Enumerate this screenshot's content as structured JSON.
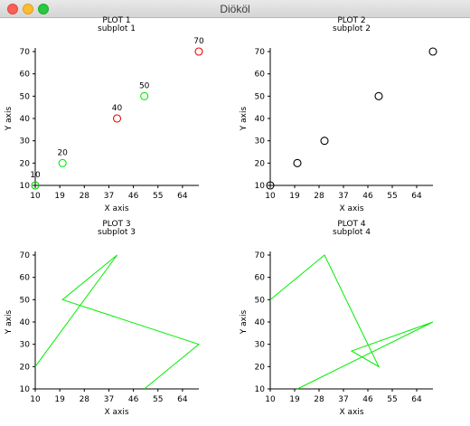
{
  "window": {
    "title": "Diököl"
  },
  "chart_data": [
    {
      "type": "scatter",
      "title": "PLOT 1",
      "subtitle": "subplot 1",
      "xlabel": "X axis",
      "ylabel": "Y axis",
      "xlim": [
        10,
        70
      ],
      "ylim": [
        10,
        70
      ],
      "xticks": [
        10,
        19,
        28,
        37,
        46,
        55,
        64
      ],
      "yticks": [
        10,
        20,
        30,
        40,
        50,
        60,
        70
      ],
      "points": [
        {
          "x": 10,
          "y": 10,
          "label": "10",
          "color": "#00cc00"
        },
        {
          "x": 20,
          "y": 20,
          "label": "20",
          "color": "#00ee00"
        },
        {
          "x": 40,
          "y": 40,
          "label": "40",
          "color": "#ee0000"
        },
        {
          "x": 50,
          "y": 50,
          "label": "50",
          "color": "#00ee00"
        },
        {
          "x": 70,
          "y": 70,
          "label": "70",
          "color": "#ee0000"
        }
      ]
    },
    {
      "type": "scatter",
      "title": "PLOT 2",
      "subtitle": "subplot 2",
      "xlabel": "X axis",
      "ylabel": "Y axis",
      "xlim": [
        10,
        70
      ],
      "ylim": [
        10,
        70
      ],
      "xticks": [
        10,
        19,
        28,
        37,
        46,
        55,
        64
      ],
      "yticks": [
        10,
        20,
        30,
        40,
        50,
        60,
        70
      ],
      "points": [
        {
          "x": 10,
          "y": 10,
          "color": "#000000"
        },
        {
          "x": 20,
          "y": 20,
          "color": "#000000"
        },
        {
          "x": 30,
          "y": 30,
          "color": "#000000"
        },
        {
          "x": 50,
          "y": 50,
          "color": "#000000"
        },
        {
          "x": 70,
          "y": 70,
          "color": "#000000"
        }
      ]
    },
    {
      "type": "line",
      "title": "PLOT 3",
      "subtitle": "subplot 3",
      "xlabel": "X axis",
      "ylabel": "Y axis",
      "xlim": [
        10,
        70
      ],
      "ylim": [
        10,
        70
      ],
      "xticks": [
        10,
        19,
        28,
        37,
        46,
        55,
        64
      ],
      "yticks": [
        10,
        20,
        30,
        40,
        50,
        60,
        70
      ],
      "line_color": "#00ee00",
      "points": [
        {
          "x": 10,
          "y": 20
        },
        {
          "x": 40,
          "y": 70
        },
        {
          "x": 20,
          "y": 50
        },
        {
          "x": 70,
          "y": 30
        },
        {
          "x": 50,
          "y": 10
        }
      ]
    },
    {
      "type": "line",
      "title": "PLOT 4",
      "subtitle": "subplot 4",
      "xlabel": "X axis",
      "ylabel": "Y axis",
      "xlim": [
        10,
        70
      ],
      "ylim": [
        10,
        70
      ],
      "xticks": [
        10,
        19,
        28,
        37,
        46,
        55,
        64
      ],
      "yticks": [
        10,
        20,
        30,
        40,
        50,
        60,
        70
      ],
      "line_color": "#00ee00",
      "points": [
        {
          "x": 10,
          "y": 50
        },
        {
          "x": 30,
          "y": 70
        },
        {
          "x": 50,
          "y": 20
        },
        {
          "x": 40,
          "y": 27
        },
        {
          "x": 70,
          "y": 40
        },
        {
          "x": 20,
          "y": 10
        }
      ]
    }
  ]
}
